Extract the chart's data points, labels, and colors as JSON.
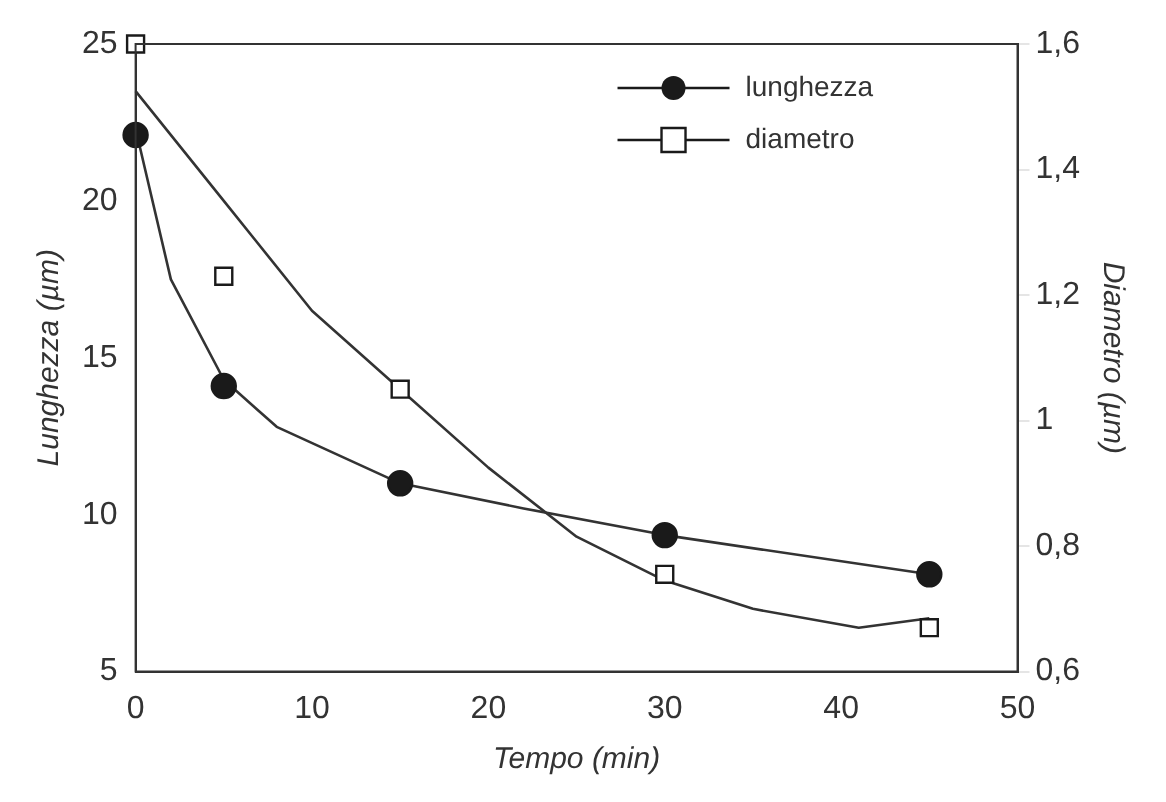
{
  "chart_data": {
    "type": "scatter",
    "xlabel": "Tempo (min)",
    "ylabel": "Lunghezza (µm)",
    "y2label": "Diametro (µm)",
    "xlim": [
      0,
      50
    ],
    "xticks": [
      0,
      10,
      20,
      30,
      40,
      50
    ],
    "ylim": [
      5,
      25
    ],
    "yticks": [
      5,
      10,
      15,
      20,
      25
    ],
    "y2lim": [
      0.6,
      1.6
    ],
    "y2ticks": [
      {
        "value": 0.6,
        "label": "0,6"
      },
      {
        "value": 0.8,
        "label": "0,8"
      },
      {
        "value": 1,
        "label": "1"
      },
      {
        "value": 1.2,
        "label": "1,2"
      },
      {
        "value": 1.4,
        "label": "1,4"
      },
      {
        "value": 1.6,
        "label": "1,6"
      }
    ],
    "grid": false,
    "legend": "top right",
    "series": [
      {
        "name": "lunghezza",
        "type": "scatter",
        "marker": "circle",
        "color": "#1a1a1a",
        "x": [
          0,
          5,
          15,
          30,
          45
        ],
        "values": [
          22.1,
          14.1,
          11.0,
          9.35,
          8.1
        ]
      },
      {
        "name": "diametro",
        "type": "scatter",
        "marker": "square",
        "color": "#1a1a1a",
        "axis": "y2",
        "x": [
          0,
          5,
          15,
          30,
          45
        ],
        "values": [
          1.6,
          1.23,
          1.05,
          0.755,
          0.67
        ]
      },
      {
        "type": "line",
        "marker": "none",
        "line_style": "solid",
        "color": "#333333",
        "x": [
          0,
          2,
          5,
          8,
          15,
          22,
          30,
          45
        ],
        "values": [
          22.3,
          17.5,
          14.3,
          12.8,
          11.0,
          10.2,
          9.35,
          8.1
        ]
      },
      {
        "type": "line",
        "marker": "none",
        "line_style": "solid",
        "color": "#333333",
        "axis": "y2",
        "x": [
          0,
          5,
          10,
          15,
          20,
          25,
          30,
          35,
          41,
          45
        ],
        "values": [
          1.525,
          1.35,
          1.175,
          1.05,
          0.925,
          0.815,
          0.745,
          0.7,
          0.67,
          0.685
        ]
      }
    ]
  }
}
